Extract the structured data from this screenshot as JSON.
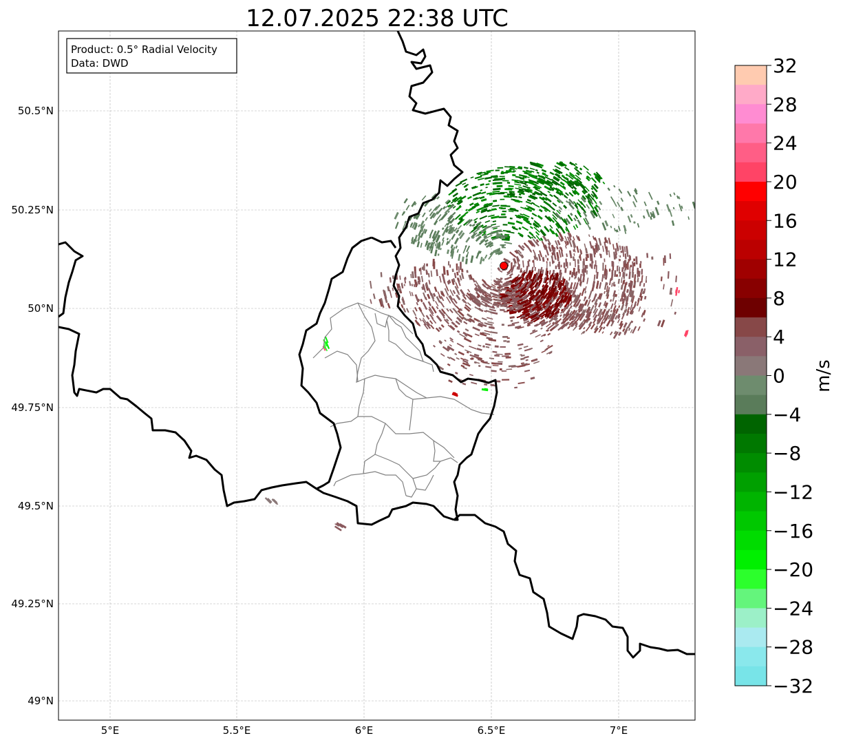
{
  "title": "12.07.2025 22:38 UTC",
  "info_box": {
    "product": "Product: 0.5° Radial Velocity",
    "data": "Data: DWD"
  },
  "map": {
    "lon_range": [
      4.8,
      7.3
    ],
    "lat_range": [
      48.95,
      50.7
    ],
    "lon_ticks": [
      "5°E",
      "5.5°E",
      "6°E",
      "6.5°E",
      "7°E"
    ],
    "lon_tick_values": [
      5.0,
      5.5,
      6.0,
      6.5,
      7.0
    ],
    "lat_ticks": [
      "50.5°N",
      "50.25°N",
      "50°N",
      "49.75°N",
      "49.5°N",
      "49.25°N",
      "49°N"
    ],
    "lat_tick_values": [
      50.5,
      50.25,
      50.0,
      49.75,
      49.5,
      49.25,
      49.0
    ],
    "gridlines": true,
    "radar_site": {
      "lon": 6.55,
      "lat": 50.11,
      "marker_color": "#ff0000"
    }
  },
  "colorbar": {
    "label": "m/s",
    "ticks": [
      "32",
      "28",
      "24",
      "20",
      "16",
      "12",
      "8",
      "4",
      "0",
      "−4",
      "−8",
      "−12",
      "−16",
      "−20",
      "−24",
      "−28",
      "−32"
    ],
    "min": -32,
    "max": 32,
    "colors_top_to_bottom": [
      "#ffcbb0",
      "#ffaac8",
      "#ff8cd2",
      "#ff78aa",
      "#ff5e86",
      "#ff4466",
      "#ff0000",
      "#e00000",
      "#cc0000",
      "#bb0000",
      "#a00000",
      "#880000",
      "#6e0000",
      "#874848",
      "#8a6068",
      "#8a7878",
      "#6e8c6e",
      "#5a7c5a",
      "#006400",
      "#007800",
      "#008c00",
      "#00a000",
      "#00b400",
      "#00c800",
      "#00dc00",
      "#00f000",
      "#2cff2c",
      "#64f57c",
      "#9cf0c8",
      "#aaeaf0",
      "#8ae8ec",
      "#78e4e8"
    ]
  },
  "velocity_colors": {
    "outbound_dark": "#7a0000",
    "outbound_mid": "#8a5a5e",
    "inbound_dark": "#006400",
    "inbound_mid": "#5a7c5a",
    "inbound_bright": "#00f000"
  }
}
